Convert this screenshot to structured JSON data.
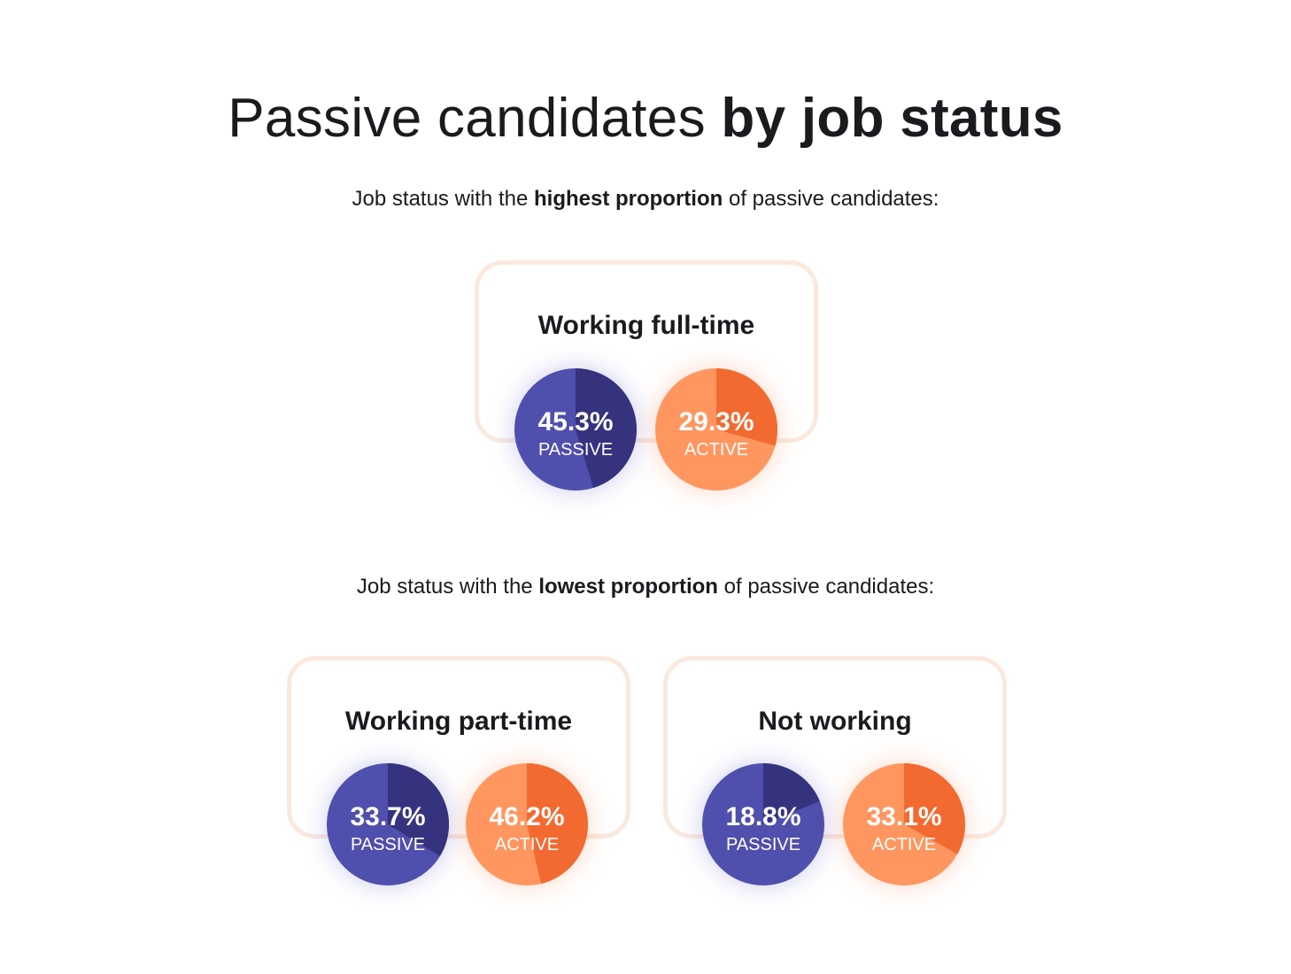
{
  "title": {
    "light": "Passive candidates",
    "bold": "by job status"
  },
  "highest_heading": {
    "pre": "Job status with the",
    "bold": "highest proportion",
    "post": "of passive candidates:"
  },
  "lowest_heading": {
    "pre": "Job status with the",
    "bold": "lowest proportion",
    "post": "of passive candidates:"
  },
  "colors": {
    "passive_light": "#4f4fad",
    "passive_dark": "#35327e",
    "active_light": "#ff9660",
    "active_dark": "#f26a30",
    "card_border": "#fbe9de"
  },
  "chart_data": [
    {
      "type": "pie",
      "title": "Working full-time",
      "group": "highest",
      "series": [
        {
          "name": "PASSIVE",
          "label": "45.3%",
          "value": 45.3
        },
        {
          "name": "ACTIVE",
          "label": "29.3%",
          "value": 29.3
        }
      ]
    },
    {
      "type": "pie",
      "title": "Working part-time",
      "group": "lowest",
      "series": [
        {
          "name": "PASSIVE",
          "label": "33.7%",
          "value": 33.7
        },
        {
          "name": "ACTIVE",
          "label": "46.2%",
          "value": 46.2
        }
      ]
    },
    {
      "type": "pie",
      "title": "Not working",
      "group": "lowest",
      "series": [
        {
          "name": "PASSIVE",
          "label": "18.8%",
          "value": 18.8
        },
        {
          "name": "ACTIVE",
          "label": "33.1%",
          "value": 33.1
        }
      ]
    }
  ]
}
